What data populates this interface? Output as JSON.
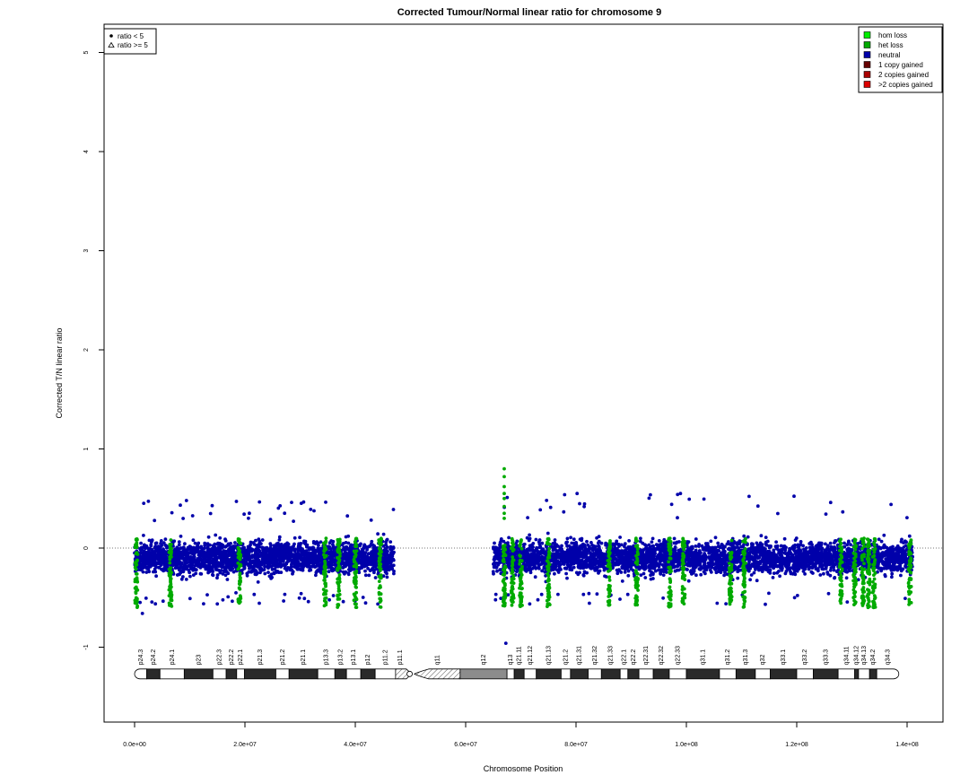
{
  "chart_data": {
    "type": "scatter",
    "title": "Corrected Tumour/Normal linear ratio for chromosome  9",
    "xlabel": "Chromosome Position",
    "ylabel": "Corrected T/N linear ratio",
    "xlim": [
      -5000000,
      146000000
    ],
    "ylim": [
      -1.8,
      5.3
    ],
    "x_ticks": [
      0,
      20000000,
      40000000,
      60000000,
      80000000,
      100000000,
      120000000,
      140000000
    ],
    "x_tick_labels": [
      "0.0e+00",
      "2.0e+07",
      "4.0e+07",
      "6.0e+07",
      "8.0e+07",
      "1.0e+08",
      "1.2e+08",
      "1.4e+08"
    ],
    "y_ticks": [
      -1,
      0,
      1,
      2,
      3,
      4,
      5
    ],
    "y_tick_labels": [
      "-1",
      "0",
      "1",
      "2",
      "3",
      "4",
      "5"
    ],
    "reference_line": {
      "y": 0,
      "style": "dotted"
    },
    "shape_legend": {
      "position": "top-left",
      "entries": [
        {
          "symbol": "filled-circle",
          "label": "ratio < 5"
        },
        {
          "symbol": "open-triangle",
          "label": "ratio >= 5"
        }
      ]
    },
    "color_legend": {
      "position": "top-right",
      "entries": [
        {
          "label": "hom loss",
          "color": "#00ee00"
        },
        {
          "label": "het loss",
          "color": "#00aa00"
        },
        {
          "label": "neutral",
          "color": "#0000aa"
        },
        {
          "label": "1 copy gained",
          "color": "#660000"
        },
        {
          "label": "2 copies gained",
          "color": "#aa0000"
        },
        {
          "label": ">2 copies gained",
          "color": "#dd0000"
        }
      ]
    },
    "series": [
      {
        "name": "neutral",
        "color": "#0000aa",
        "segments": [
          {
            "x_range": [
              0,
              47000000
            ],
            "median": -0.1,
            "low": -0.45,
            "high": 0.25,
            "max_outlier": 0.48,
            "min_outlier": -0.66
          },
          {
            "x_range": [
              65000000,
              141000000
            ],
            "median": -0.1,
            "low": -0.45,
            "high": 0.28,
            "max_outlier": 0.55,
            "min_outlier": -0.96
          }
        ]
      },
      {
        "name": "het loss",
        "color": "#00aa00",
        "positions": [
          300000,
          6500000,
          19000000,
          34500000,
          37000000,
          40000000,
          44500000,
          67000000,
          68500000,
          70000000,
          75000000,
          86000000,
          91000000,
          97000000,
          99500000,
          108000000,
          110500000,
          128000000,
          130500000,
          132000000,
          133000000,
          134000000,
          140500000
        ],
        "range": [
          -0.6,
          0.1
        ],
        "spike": {
          "x": 67000000,
          "values": [
            0.8,
            0.72,
            0.62,
            0.55,
            0.5,
            0.42,
            0.35,
            0.3
          ]
        }
      }
    ],
    "ideogram": {
      "y": -1.27,
      "bands": [
        {
          "name": "p24.3",
          "start": 0,
          "end": 2200000,
          "stain": "white"
        },
        {
          "name": "p24.2",
          "start": 2200000,
          "end": 4600000,
          "stain": "black"
        },
        {
          "name": "p24.1",
          "start": 4600000,
          "end": 9000000,
          "stain": "white"
        },
        {
          "name": "p23",
          "start": 9000000,
          "end": 14200000,
          "stain": "black"
        },
        {
          "name": "p22.3",
          "start": 14200000,
          "end": 16600000,
          "stain": "white"
        },
        {
          "name": "p22.2",
          "start": 16600000,
          "end": 18500000,
          "stain": "black"
        },
        {
          "name": "p22.1",
          "start": 18500000,
          "end": 19900000,
          "stain": "white"
        },
        {
          "name": "p21.3",
          "start": 19900000,
          "end": 25600000,
          "stain": "black"
        },
        {
          "name": "p21.2",
          "start": 25600000,
          "end": 28000000,
          "stain": "white"
        },
        {
          "name": "p21.1",
          "start": 28000000,
          "end": 33200000,
          "stain": "black"
        },
        {
          "name": "p13.3",
          "start": 33200000,
          "end": 36300000,
          "stain": "white"
        },
        {
          "name": "p13.2",
          "start": 36300000,
          "end": 38400000,
          "stain": "black"
        },
        {
          "name": "p13.1",
          "start": 38400000,
          "end": 41000000,
          "stain": "white"
        },
        {
          "name": "p12",
          "start": 41000000,
          "end": 43600000,
          "stain": "black"
        },
        {
          "name": "p11.2",
          "start": 43600000,
          "end": 47300000,
          "stain": "white"
        },
        {
          "name": "p11.1",
          "start": 47300000,
          "end": 49000000,
          "stain": "hatched"
        },
        {
          "name": "q11",
          "start": 50700000,
          "end": 59000000,
          "stain": "hatched"
        },
        {
          "name": "q12",
          "start": 59000000,
          "end": 67500000,
          "stain": "gray"
        },
        {
          "name": "q13",
          "start": 67500000,
          "end": 68800000,
          "stain": "white"
        },
        {
          "name": "q21.11",
          "start": 68800000,
          "end": 70600000,
          "stain": "black"
        },
        {
          "name": "q21.12",
          "start": 70600000,
          "end": 72800000,
          "stain": "white"
        },
        {
          "name": "q21.13",
          "start": 72800000,
          "end": 77300000,
          "stain": "black"
        },
        {
          "name": "q21.2",
          "start": 77300000,
          "end": 79000000,
          "stain": "white"
        },
        {
          "name": "q21.31",
          "start": 79000000,
          "end": 82200000,
          "stain": "black"
        },
        {
          "name": "q21.32",
          "start": 82200000,
          "end": 84600000,
          "stain": "white"
        },
        {
          "name": "q21.33",
          "start": 84600000,
          "end": 88000000,
          "stain": "black"
        },
        {
          "name": "q22.1",
          "start": 88000000,
          "end": 89400000,
          "stain": "white"
        },
        {
          "name": "q22.2",
          "start": 89400000,
          "end": 91400000,
          "stain": "black"
        },
        {
          "name": "q22.31",
          "start": 91400000,
          "end": 94000000,
          "stain": "white"
        },
        {
          "name": "q22.32",
          "start": 94000000,
          "end": 96900000,
          "stain": "black"
        },
        {
          "name": "q22.33",
          "start": 96900000,
          "end": 100000000,
          "stain": "white"
        },
        {
          "name": "q31.1",
          "start": 100000000,
          "end": 106000000,
          "stain": "black"
        },
        {
          "name": "q31.2",
          "start": 106000000,
          "end": 109000000,
          "stain": "white"
        },
        {
          "name": "q31.3",
          "start": 109000000,
          "end": 112500000,
          "stain": "black"
        },
        {
          "name": "q32",
          "start": 112500000,
          "end": 115200000,
          "stain": "white"
        },
        {
          "name": "q33.1",
          "start": 115200000,
          "end": 120000000,
          "stain": "black"
        },
        {
          "name": "q33.2",
          "start": 120000000,
          "end": 123000000,
          "stain": "white"
        },
        {
          "name": "q33.3",
          "start": 123000000,
          "end": 127500000,
          "stain": "black"
        },
        {
          "name": "q34.11",
          "start": 127500000,
          "end": 130500000,
          "stain": "white"
        },
        {
          "name": "q34.12",
          "start": 130500000,
          "end": 131200000,
          "stain": "black"
        },
        {
          "name": "q34.13",
          "start": 131200000,
          "end": 133200000,
          "stain": "white"
        },
        {
          "name": "q34.2",
          "start": 133200000,
          "end": 134500000,
          "stain": "black"
        },
        {
          "name": "q34.3",
          "start": 134500000,
          "end": 138500000,
          "stain": "white"
        }
      ]
    }
  }
}
